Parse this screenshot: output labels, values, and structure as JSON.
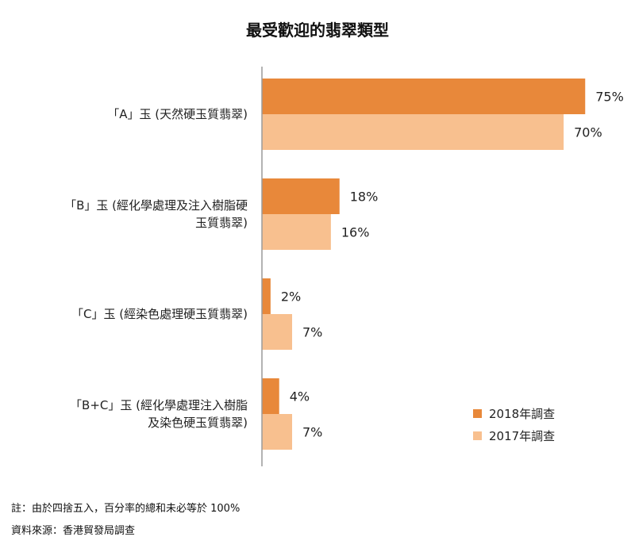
{
  "chart_data": {
    "type": "bar",
    "orientation": "horizontal",
    "title": "最受歡迎的翡翠類型",
    "xlim": [
      0,
      80
    ],
    "grid": false,
    "legend_position": "bottom-right",
    "value_suffix": "%",
    "categories": [
      [
        "「A」玉 (天然硬玉質翡翠)"
      ],
      [
        "「B」玉 (經化學處理及注入樹脂硬",
        "玉質翡翠)"
      ],
      [
        "「C」玉 (經染色處理硬玉質翡翠)"
      ],
      [
        "「B+C」玉 (經化學處理注入樹脂",
        "及染色硬玉質翡翠)"
      ]
    ],
    "series": [
      {
        "name": "2018年調查",
        "color": "#E8883A",
        "values": [
          75,
          18,
          2,
          4
        ],
        "labels": [
          "75%",
          "18%",
          "2%",
          "4%"
        ]
      },
      {
        "name": "2017年調查",
        "color": "#F8C08F",
        "values": [
          70,
          16,
          7,
          7
        ],
        "labels": [
          "70%",
          "16%",
          "7%",
          "7%"
        ]
      }
    ]
  },
  "footnotes": {
    "note": "註：由於四捨五入，百分率的總和未必等於 100%",
    "source": "資料來源：香港貿發局調查"
  }
}
